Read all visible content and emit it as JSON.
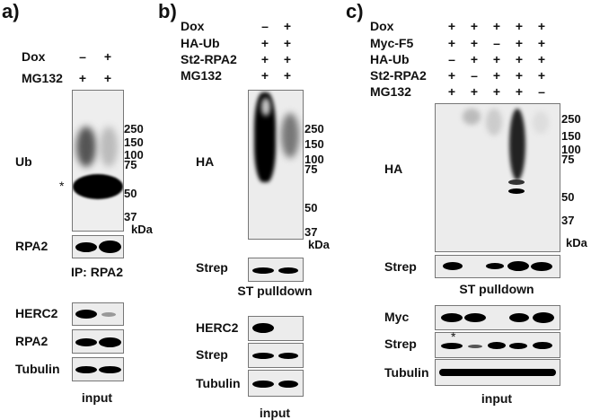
{
  "panel_a": {
    "label": "a)",
    "conditions": [
      {
        "name": "Dox",
        "values": [
          "–",
          "+"
        ]
      },
      {
        "name": "MG132",
        "values": [
          "+",
          "+"
        ]
      }
    ],
    "blots": {
      "ub": "Ub",
      "rpa2_ip": "RPA2",
      "herc2": "HERC2",
      "rpa2_input": "RPA2",
      "tubulin": "Tubulin"
    },
    "asterisk": "*",
    "ip_caption": "IP: RPA2",
    "input_caption": "input",
    "markers": [
      "250",
      "150",
      "100",
      "75",
      "50",
      "37"
    ],
    "kda": "kDa"
  },
  "panel_b": {
    "label": "b)",
    "conditions": [
      {
        "name": "Dox",
        "values": [
          "–",
          "+"
        ]
      },
      {
        "name": "HA-Ub",
        "values": [
          "+",
          "+"
        ]
      },
      {
        "name": "St2-RPA2",
        "values": [
          "+",
          "+"
        ]
      },
      {
        "name": "MG132",
        "values": [
          "+",
          "+"
        ]
      }
    ],
    "blots": {
      "ha": "HA",
      "strep": "Strep",
      "herc2": "HERC2",
      "strep_input": "Strep",
      "tubulin": "Tubulin"
    },
    "pulldown_caption": "ST pulldown",
    "input_caption": "input",
    "markers": [
      "250",
      "150",
      "100",
      "75",
      "50",
      "37"
    ],
    "kda": "kDa"
  },
  "panel_c": {
    "label": "c)",
    "conditions": [
      {
        "name": "Dox",
        "values": [
          "+",
          "+",
          "+",
          "+",
          "+"
        ]
      },
      {
        "name": "Myc-F5",
        "values": [
          "+",
          "+",
          "–",
          "+",
          "+"
        ]
      },
      {
        "name": "HA-Ub",
        "values": [
          "–",
          "+",
          "+",
          "+",
          "+"
        ]
      },
      {
        "name": "St2-RPA2",
        "values": [
          "+",
          "–",
          "+",
          "+",
          "+"
        ]
      },
      {
        "name": "MG132",
        "values": [
          "+",
          "+",
          "+",
          "+",
          "–"
        ]
      }
    ],
    "blots": {
      "ha": "HA",
      "strep": "Strep",
      "myc": "Myc",
      "strep_input": "Strep",
      "tubulin": "Tubulin"
    },
    "asterisk": "*",
    "pulldown_caption": "ST pulldown",
    "input_caption": "input",
    "markers": [
      "250",
      "150",
      "100",
      "75",
      "50",
      "37"
    ],
    "kda": "kDa"
  }
}
